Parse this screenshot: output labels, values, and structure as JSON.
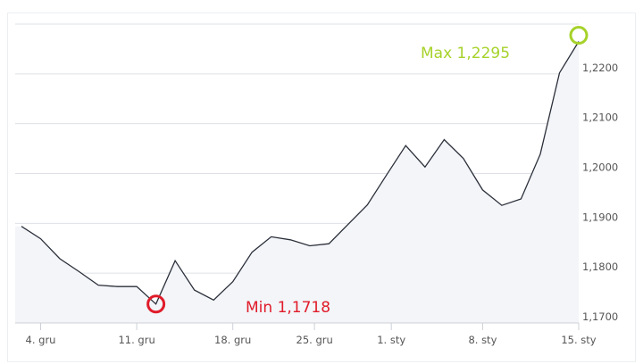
{
  "chart_data": {
    "type": "area",
    "title": "",
    "xlabel": "",
    "ylabel": "",
    "ylim": [
      1.17,
      1.23
    ],
    "y_ticks": [
      "1,1700",
      "1,1800",
      "1,1900",
      "1,2000",
      "1,2100",
      "1,2200"
    ],
    "y_tick_values": [
      1.17,
      1.18,
      1.19,
      1.2,
      1.21,
      1.22
    ],
    "x_ticks": [
      {
        "label": "4. gru",
        "date": "12-04"
      },
      {
        "label": "11. gru",
        "date": "12-11"
      },
      {
        "label": "18. gru",
        "date": "12-18"
      },
      {
        "label": "25. gru",
        "date": "12-25"
      },
      {
        "label": "1. sty",
        "date": "01-01"
      },
      {
        "label": "8. sty",
        "date": "01-08"
      },
      {
        "label": "15. sty",
        "date": "01-15"
      }
    ],
    "grid": true,
    "y_axis_side": "right",
    "series": [
      {
        "x": [
          "12-03",
          "12-04",
          "12-07",
          "12-08",
          "12-09",
          "12-10",
          "12-11",
          "12-14",
          "12-15",
          "12-16",
          "12-17",
          "12-18",
          "12-21",
          "12-22",
          "12-23",
          "12-24",
          "12-28",
          "12-29",
          "12-30",
          "12-31",
          "01-04",
          "01-05",
          "01-06",
          "01-07",
          "01-08",
          "01-11",
          "01-12",
          "01-13",
          "01-14",
          "01-15"
        ],
        "values": [
          1.1894,
          1.1869,
          1.1829,
          1.1803,
          1.1776,
          1.1773,
          1.1773,
          1.1738,
          1.1825,
          1.1766,
          1.1746,
          1.1783,
          1.1842,
          1.1873,
          1.1867,
          1.1855,
          1.1859,
          1.1898,
          1.1937,
          1.1997,
          1.2056,
          1.2013,
          1.2068,
          1.203,
          1.1967,
          1.1936,
          1.1949,
          1.2039,
          1.2202,
          1.2265
        ],
        "color": "#2b2f3a",
        "fill": "#f3f5f8"
      }
    ],
    "annotations": {
      "max": {
        "label": "Max 1,2295",
        "index": 29,
        "color": "#a6d22a"
      },
      "min": {
        "label": "Min 1,1718",
        "index": 7,
        "color": "#e01b2a"
      }
    }
  }
}
